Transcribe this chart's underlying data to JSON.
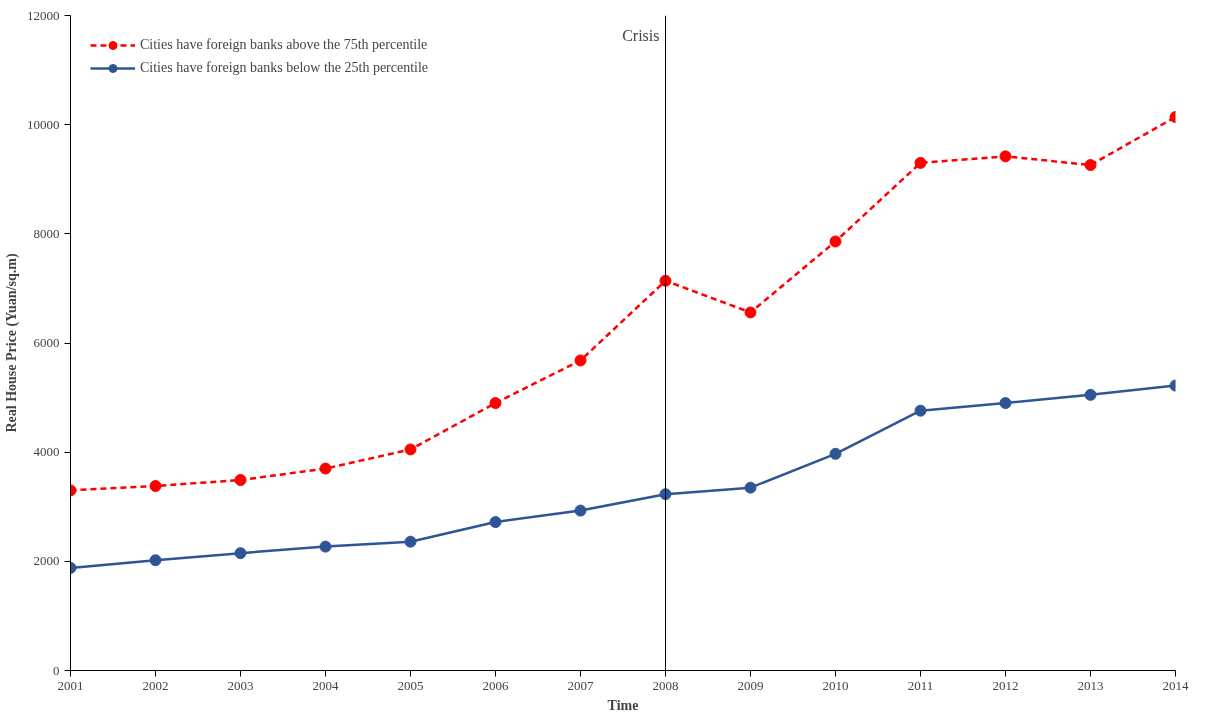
{
  "chart_data": {
    "type": "line",
    "xlabel": "Time",
    "ylabel": "Real House Price (Yuan/sq.m)",
    "x": [
      2001,
      2002,
      2003,
      2004,
      2005,
      2006,
      2007,
      2008,
      2009,
      2010,
      2011,
      2012,
      2013,
      2014
    ],
    "series": [
      {
        "name": "Cities have foreign banks above the 75th percentile",
        "color": "#ff0000",
        "line_style": "dashed",
        "values": [
          3300,
          3380,
          3490,
          3700,
          4050,
          4900,
          5680,
          7140,
          6560,
          7860,
          9300,
          9420,
          9260,
          10140
        ]
      },
      {
        "name": "Cities have foreign banks below the 25th percentile",
        "color": "#2f5597",
        "line_style": "solid",
        "values": [
          1880,
          2020,
          2150,
          2270,
          2360,
          2720,
          2930,
          3230,
          3350,
          3970,
          4760,
          4900,
          5050,
          5220
        ]
      }
    ],
    "marker": "circle",
    "xlim": [
      2001,
      2014
    ],
    "ylim": [
      0,
      12000
    ],
    "xticks": [
      2001,
      2002,
      2003,
      2004,
      2005,
      2006,
      2007,
      2008,
      2009,
      2010,
      2011,
      2012,
      2013,
      2014
    ],
    "yticks": [
      0,
      2000,
      4000,
      6000,
      8000,
      10000,
      12000
    ],
    "ref_lines": [
      {
        "axis": "x",
        "value": 2008,
        "label": "Crisis",
        "color": "#000000"
      }
    ],
    "grid": false,
    "legend": "top left"
  }
}
